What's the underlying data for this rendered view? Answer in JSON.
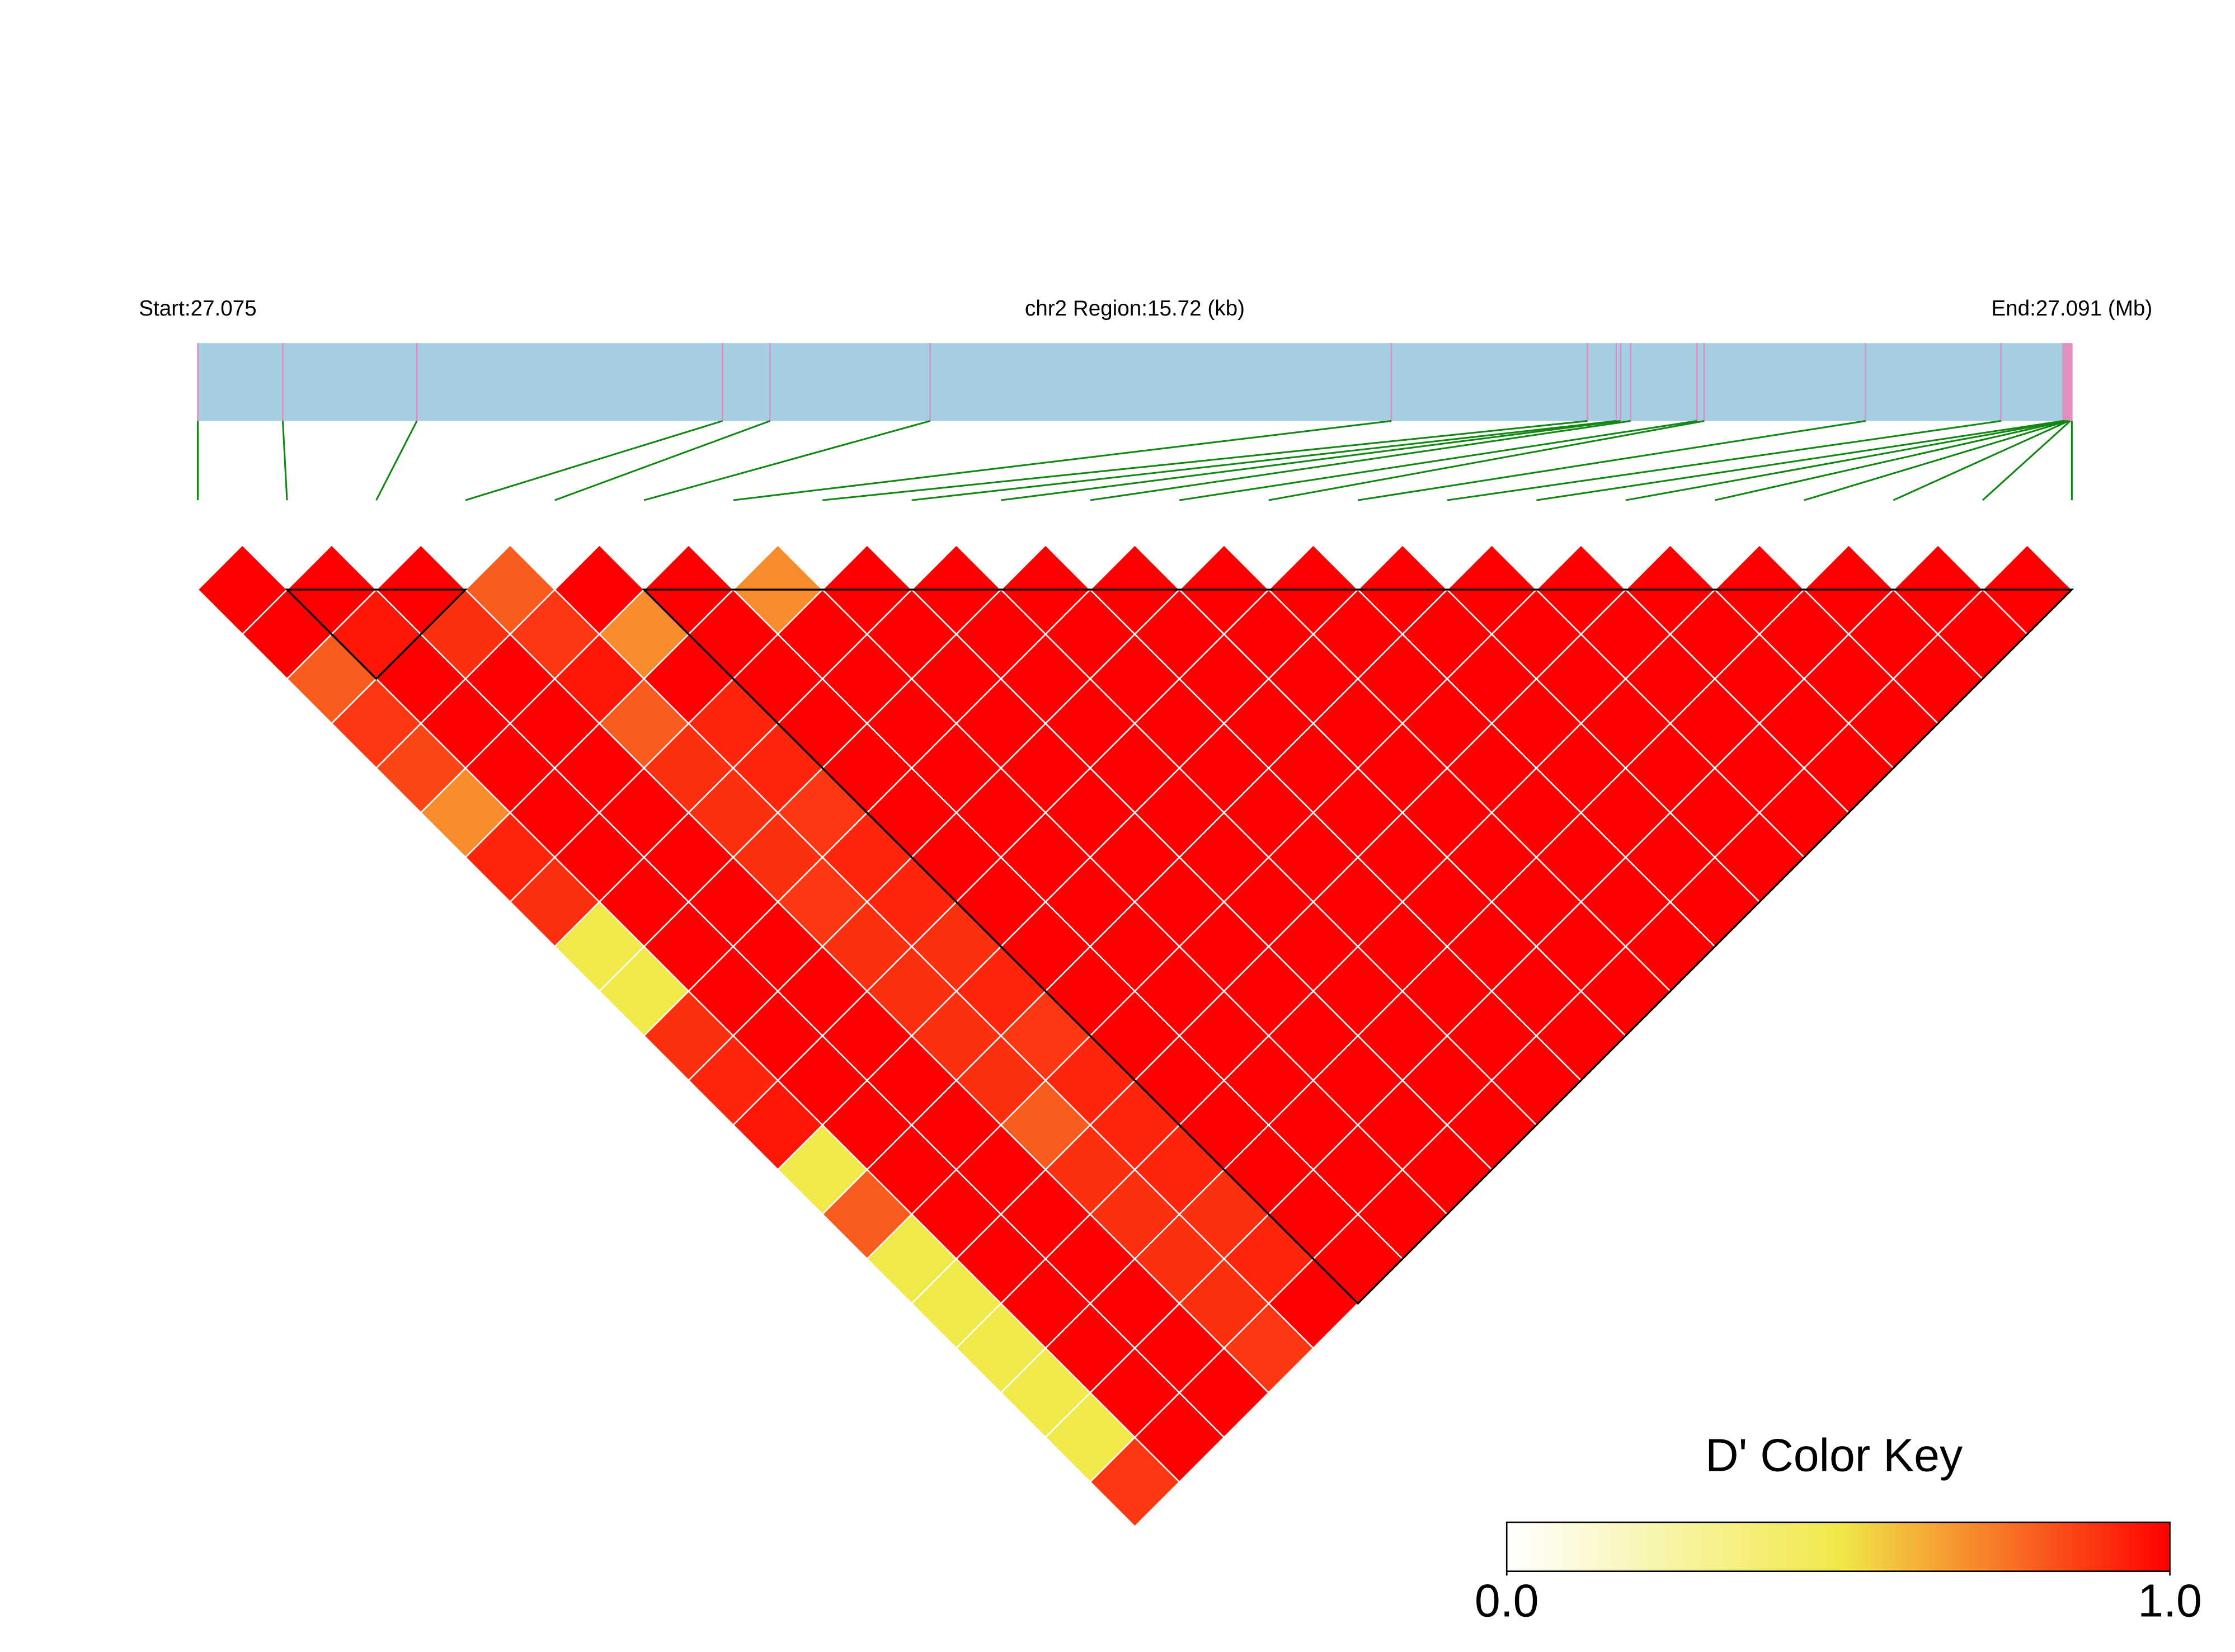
{
  "chart_data": {
    "type": "ld-heatmap",
    "start_label": "Start:27.075",
    "region_label": "chr2 Region:15.72 (kb)",
    "end_label": "End:27.091 (Mb)",
    "positions": [
      0,
      0.713,
      1.838,
      4.402,
      4.8,
      6.143,
      10.012,
      11.657,
      11.899,
      11.935,
      12.019,
      12.576,
      12.636,
      13.99,
      15.126,
      15.646,
      15.658,
      15.671,
      15.683,
      15.695,
      15.707,
      15.72
    ],
    "ld": [
      [
        1,
        1,
        0.8,
        0.88,
        0.85,
        0.7,
        0.92,
        0.9,
        0.5,
        0.5,
        0.9,
        0.92,
        0.95,
        0.5,
        0.8,
        0.5,
        0.5,
        0.5,
        0.5,
        0.5,
        0.88
      ],
      [
        1,
        0.95,
        1,
        1,
        1,
        1,
        1,
        1,
        1,
        1,
        1,
        1,
        1,
        1,
        1,
        1,
        1,
        1,
        1,
        1
      ],
      [
        1,
        0.9,
        1,
        1,
        1,
        1,
        1,
        1,
        1,
        1,
        1,
        1,
        1,
        1,
        1,
        1,
        1,
        1,
        1
      ],
      [
        0.8,
        0.88,
        0.95,
        0.8,
        0.9,
        0.9,
        0.9,
        0.88,
        0.9,
        0.9,
        0.9,
        0.9,
        0.8,
        0.9,
        0.9,
        0.9,
        0.9,
        0.88
      ],
      [
        1,
        0.7,
        1,
        0.92,
        0.92,
        0.88,
        0.92,
        0.92,
        0.9,
        0.92,
        0.88,
        0.92,
        0.92,
        0.92,
        0.9,
        0.92,
        1
      ],
      [
        1,
        1,
        1,
        1,
        1,
        1,
        1,
        1,
        1,
        1,
        1,
        1,
        1,
        1,
        1,
        1
      ],
      [
        0.7,
        1,
        1,
        1,
        1,
        1,
        1,
        1,
        1,
        1,
        1,
        1,
        1,
        1,
        1
      ],
      [
        1,
        1,
        1,
        1,
        1,
        1,
        1,
        1,
        1,
        1,
        1,
        1,
        1,
        1
      ],
      [
        1,
        1,
        1,
        1,
        1,
        1,
        1,
        1,
        1,
        1,
        1,
        1,
        1
      ],
      [
        1,
        1,
        1,
        1,
        1,
        1,
        1,
        1,
        1,
        1,
        1,
        1
      ],
      [
        1,
        1,
        1,
        1,
        1,
        1,
        1,
        1,
        1,
        1,
        1
      ],
      [
        1,
        1,
        1,
        1,
        1,
        1,
        1,
        1,
        1,
        1
      ],
      [
        1,
        1,
        1,
        1,
        1,
        1,
        1,
        1,
        1
      ],
      [
        1,
        1,
        1,
        1,
        1,
        1,
        1,
        1
      ],
      [
        1,
        1,
        1,
        1,
        1,
        1,
        1
      ],
      [
        1,
        1,
        1,
        1,
        1,
        1
      ],
      [
        1,
        1,
        1,
        1,
        1
      ],
      [
        1,
        1,
        1,
        1
      ],
      [
        1,
        1,
        1
      ],
      [
        1,
        1
      ],
      [
        1
      ]
    ],
    "blocks": [
      [
        1,
        3
      ],
      [
        5,
        21
      ]
    ],
    "legend_title": "D' Color Key",
    "colorbar_lim": [
      0,
      1
    ],
    "colorbar_ticks": [
      {
        "value": 0,
        "label": "0.0"
      },
      {
        "value": 1,
        "label": "1.0"
      }
    ],
    "colors": {
      "low": "#ffffff",
      "mid": "#f0e94a",
      "high": "#ff0000"
    },
    "track_color": "#a6cee3"
  }
}
